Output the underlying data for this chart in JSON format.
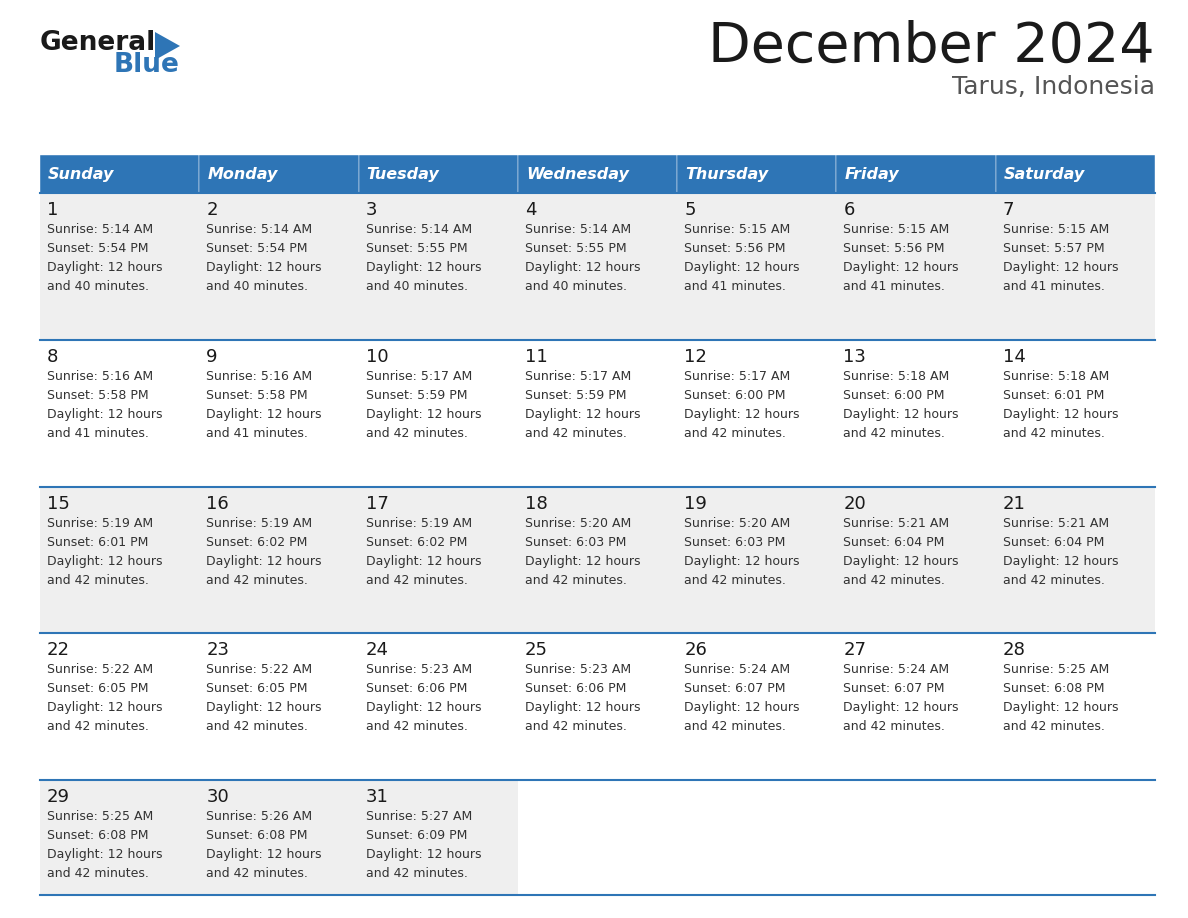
{
  "title": "December 2024",
  "subtitle": "Tarus, Indonesia",
  "header_bg_color": "#2E75B6",
  "header_text_color": "#FFFFFF",
  "day_names": [
    "Sunday",
    "Monday",
    "Tuesday",
    "Wednesday",
    "Thursday",
    "Friday",
    "Saturday"
  ],
  "cell_bg_colors": [
    "#EFEFEF",
    "#FFFFFF",
    "#EFEFEF",
    "#FFFFFF",
    "#EFEFEF"
  ],
  "row_line_color": "#2E75B6",
  "text_color": "#222222",
  "logo_general_color": "#1a1a1a",
  "logo_blue_color": "#2E75B6",
  "logo_triangle_color": "#2E75B6",
  "days": [
    {
      "day": 1,
      "col": 0,
      "row": 0,
      "sunrise": "5:14 AM",
      "sunset": "5:54 PM",
      "daylight": "12 hours and 40 minutes."
    },
    {
      "day": 2,
      "col": 1,
      "row": 0,
      "sunrise": "5:14 AM",
      "sunset": "5:54 PM",
      "daylight": "12 hours and 40 minutes."
    },
    {
      "day": 3,
      "col": 2,
      "row": 0,
      "sunrise": "5:14 AM",
      "sunset": "5:55 PM",
      "daylight": "12 hours and 40 minutes."
    },
    {
      "day": 4,
      "col": 3,
      "row": 0,
      "sunrise": "5:14 AM",
      "sunset": "5:55 PM",
      "daylight": "12 hours and 40 minutes."
    },
    {
      "day": 5,
      "col": 4,
      "row": 0,
      "sunrise": "5:15 AM",
      "sunset": "5:56 PM",
      "daylight": "12 hours and 41 minutes."
    },
    {
      "day": 6,
      "col": 5,
      "row": 0,
      "sunrise": "5:15 AM",
      "sunset": "5:56 PM",
      "daylight": "12 hours and 41 minutes."
    },
    {
      "day": 7,
      "col": 6,
      "row": 0,
      "sunrise": "5:15 AM",
      "sunset": "5:57 PM",
      "daylight": "12 hours and 41 minutes."
    },
    {
      "day": 8,
      "col": 0,
      "row": 1,
      "sunrise": "5:16 AM",
      "sunset": "5:58 PM",
      "daylight": "12 hours and 41 minutes."
    },
    {
      "day": 9,
      "col": 1,
      "row": 1,
      "sunrise": "5:16 AM",
      "sunset": "5:58 PM",
      "daylight": "12 hours and 41 minutes."
    },
    {
      "day": 10,
      "col": 2,
      "row": 1,
      "sunrise": "5:17 AM",
      "sunset": "5:59 PM",
      "daylight": "12 hours and 42 minutes."
    },
    {
      "day": 11,
      "col": 3,
      "row": 1,
      "sunrise": "5:17 AM",
      "sunset": "5:59 PM",
      "daylight": "12 hours and 42 minutes."
    },
    {
      "day": 12,
      "col": 4,
      "row": 1,
      "sunrise": "5:17 AM",
      "sunset": "6:00 PM",
      "daylight": "12 hours and 42 minutes."
    },
    {
      "day": 13,
      "col": 5,
      "row": 1,
      "sunrise": "5:18 AM",
      "sunset": "6:00 PM",
      "daylight": "12 hours and 42 minutes."
    },
    {
      "day": 14,
      "col": 6,
      "row": 1,
      "sunrise": "5:18 AM",
      "sunset": "6:01 PM",
      "daylight": "12 hours and 42 minutes."
    },
    {
      "day": 15,
      "col": 0,
      "row": 2,
      "sunrise": "5:19 AM",
      "sunset": "6:01 PM",
      "daylight": "12 hours and 42 minutes."
    },
    {
      "day": 16,
      "col": 1,
      "row": 2,
      "sunrise": "5:19 AM",
      "sunset": "6:02 PM",
      "daylight": "12 hours and 42 minutes."
    },
    {
      "day": 17,
      "col": 2,
      "row": 2,
      "sunrise": "5:19 AM",
      "sunset": "6:02 PM",
      "daylight": "12 hours and 42 minutes."
    },
    {
      "day": 18,
      "col": 3,
      "row": 2,
      "sunrise": "5:20 AM",
      "sunset": "6:03 PM",
      "daylight": "12 hours and 42 minutes."
    },
    {
      "day": 19,
      "col": 4,
      "row": 2,
      "sunrise": "5:20 AM",
      "sunset": "6:03 PM",
      "daylight": "12 hours and 42 minutes."
    },
    {
      "day": 20,
      "col": 5,
      "row": 2,
      "sunrise": "5:21 AM",
      "sunset": "6:04 PM",
      "daylight": "12 hours and 42 minutes."
    },
    {
      "day": 21,
      "col": 6,
      "row": 2,
      "sunrise": "5:21 AM",
      "sunset": "6:04 PM",
      "daylight": "12 hours and 42 minutes."
    },
    {
      "day": 22,
      "col": 0,
      "row": 3,
      "sunrise": "5:22 AM",
      "sunset": "6:05 PM",
      "daylight": "12 hours and 42 minutes."
    },
    {
      "day": 23,
      "col": 1,
      "row": 3,
      "sunrise": "5:22 AM",
      "sunset": "6:05 PM",
      "daylight": "12 hours and 42 minutes."
    },
    {
      "day": 24,
      "col": 2,
      "row": 3,
      "sunrise": "5:23 AM",
      "sunset": "6:06 PM",
      "daylight": "12 hours and 42 minutes."
    },
    {
      "day": 25,
      "col": 3,
      "row": 3,
      "sunrise": "5:23 AM",
      "sunset": "6:06 PM",
      "daylight": "12 hours and 42 minutes."
    },
    {
      "day": 26,
      "col": 4,
      "row": 3,
      "sunrise": "5:24 AM",
      "sunset": "6:07 PM",
      "daylight": "12 hours and 42 minutes."
    },
    {
      "day": 27,
      "col": 5,
      "row": 3,
      "sunrise": "5:24 AM",
      "sunset": "6:07 PM",
      "daylight": "12 hours and 42 minutes."
    },
    {
      "day": 28,
      "col": 6,
      "row": 3,
      "sunrise": "5:25 AM",
      "sunset": "6:08 PM",
      "daylight": "12 hours and 42 minutes."
    },
    {
      "day": 29,
      "col": 0,
      "row": 4,
      "sunrise": "5:25 AM",
      "sunset": "6:08 PM",
      "daylight": "12 hours and 42 minutes."
    },
    {
      "day": 30,
      "col": 1,
      "row": 4,
      "sunrise": "5:26 AM",
      "sunset": "6:08 PM",
      "daylight": "12 hours and 42 minutes."
    },
    {
      "day": 31,
      "col": 2,
      "row": 4,
      "sunrise": "5:27 AM",
      "sunset": "6:09 PM",
      "daylight": "12 hours and 42 minutes."
    }
  ]
}
